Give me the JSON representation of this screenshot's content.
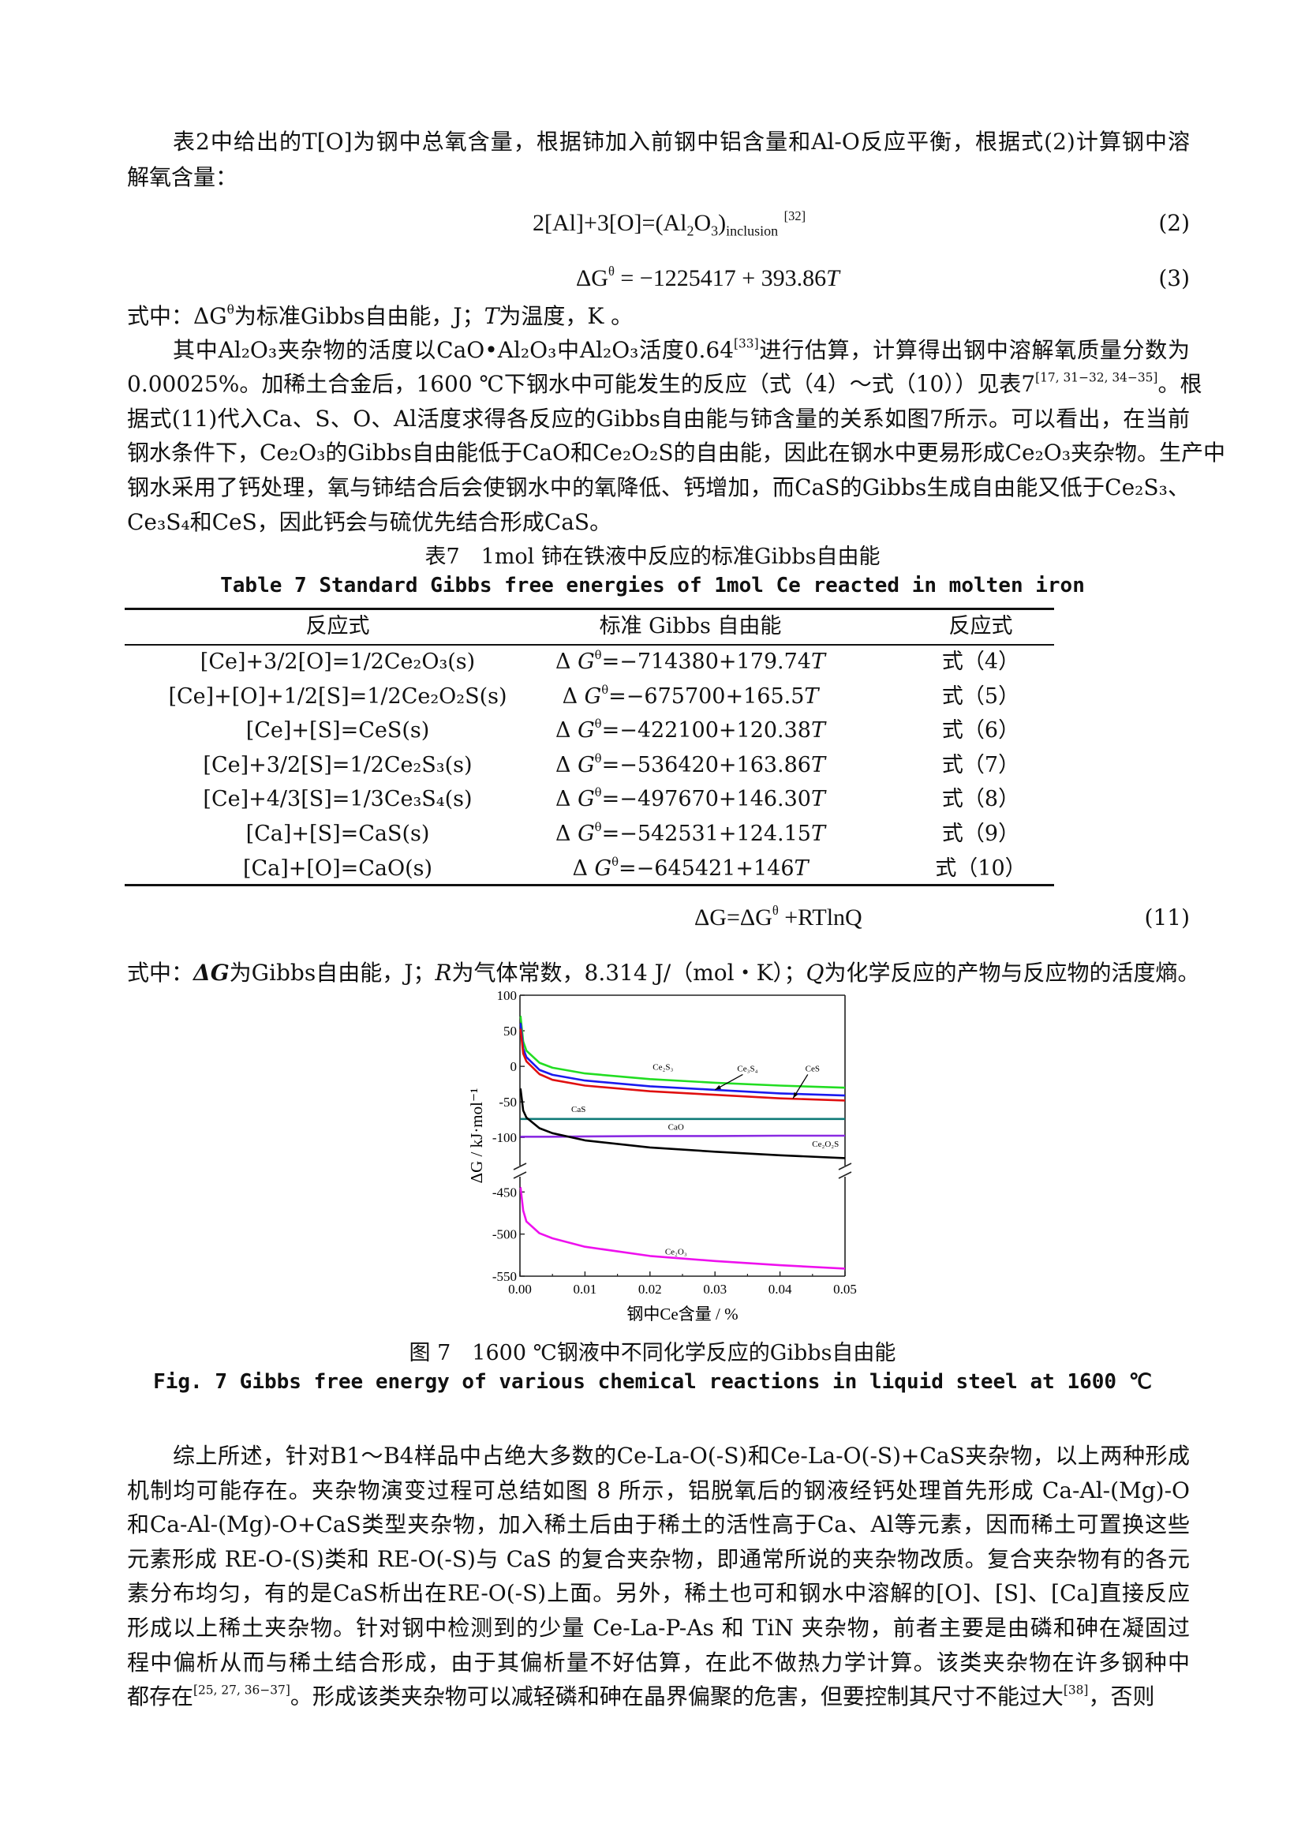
{
  "para1": [
    [
      [
        "表2中给出的T[O]为钢中总氧含量，根据铈加入前钢中铝含量和Al-O反应平衡，根据式(2)计算钢中溶",
        ""
      ]
    ],
    [
      [
        "解氧含量：",
        ""
      ]
    ]
  ],
  "eq2": {
    "parts": [
      [
        "2[Al]+3[O]=(Al",
        ""
      ],
      [
        "2",
        "sub"
      ],
      [
        "O",
        ""
      ],
      [
        "3",
        "sub"
      ],
      [
        ")",
        ""
      ],
      [
        "inclusion",
        "sub"
      ],
      [
        "  ",
        ""
      ],
      [
        "[32]",
        "sup"
      ]
    ],
    "number": "(2)"
  },
  "eq3": {
    "parts": [
      [
        "ΔG",
        ""
      ],
      [
        "θ",
        "sup"
      ],
      [
        " = −1225417 + 393.86",
        ""
      ],
      [
        "T",
        "i"
      ]
    ],
    "number": "(3)"
  },
  "note1": [
    [
      "式中：ΔG",
      ""
    ],
    [
      "θ",
      "sup"
    ],
    [
      "为标准Gibbs自由能，J；",
      ""
    ],
    [
      "T",
      "i"
    ],
    [
      "为温度，K 。",
      ""
    ]
  ],
  "para2": [
    [
      [
        "其中Al₂O₃夹杂物的活度以CaO•Al₂O₃中Al₂O₃活度0.64",
        ""
      ],
      [
        "[33]",
        "sup"
      ],
      [
        "进行估算，计算得出钢中溶解氧质量分数为",
        ""
      ]
    ],
    [
      [
        "0.00025%。加稀土合金后，1600 ℃下钢水中可能发生的反应（式（4）～式（10））见表7",
        ""
      ],
      [
        "[17, 31−32, 34−35]",
        "sup"
      ],
      [
        "。根",
        ""
      ]
    ],
    [
      [
        "据式(11)代入Ca、S、O、Al活度求得各反应的Gibbs自由能与铈含量的关系如图7所示。可以看出，在当前",
        ""
      ]
    ],
    [
      [
        "钢水条件下，Ce₂O₃的Gibbs自由能低于CaO和Ce₂O₂S的自由能，因此在钢水中更易形成Ce₂O₃夹杂物。生产中",
        ""
      ]
    ],
    [
      [
        "钢水采用了钙处理，氧与铈结合后会使钢水中的氧降低、钙增加，而CaS的Gibbs生成自由能又低于Ce₂S₃、",
        ""
      ]
    ],
    [
      [
        "Ce₃S₄和CeS，因此钙会与硫优先结合形成CaS。",
        ""
      ]
    ]
  ],
  "table": {
    "caption_cn": "表7　1mol 铈在铁液中反应的标准Gibbs自由能",
    "caption_en": "Table 7  Standard Gibbs free energies of 1mol Ce reacted in molten iron",
    "headers": [
      "反应式",
      "标准 Gibbs 自由能",
      "反应式"
    ],
    "rows": [
      {
        "reaction": "[Ce]+3/2[O]=1/2Ce₂O₃(s)",
        "energy": "=−714380+179.74",
        "eq": "式（4）"
      },
      {
        "reaction": "[Ce]+[O]+1/2[S]=1/2Ce₂O₂S(s)",
        "energy": "=−675700+165.5",
        "eq": "式（5）"
      },
      {
        "reaction": "[Ce]+[S]=CeS(s)",
        "energy": "=−422100+120.38",
        "eq": "式（6）"
      },
      {
        "reaction": "[Ce]+3/2[S]=1/2Ce₂S₃(s)",
        "energy": "=−536420+163.86",
        "eq": "式（7）"
      },
      {
        "reaction": "[Ce]+4/3[S]=1/3Ce₃S₄(s)",
        "energy": "=−497670+146.30",
        "eq": "式（8）"
      },
      {
        "reaction": "[Ca]+[S]=CaS(s)",
        "energy": "=−542531+124.15",
        "eq": "式（9）"
      },
      {
        "reaction": "[Ca]+[O]=CaO(s)",
        "energy": "=−645421+146",
        "eq": "式（10）"
      }
    ],
    "energy_prefix": "Δ",
    "energy_symbol": "G",
    "energy_sup": "θ",
    "energy_T": "T"
  },
  "eq11": {
    "parts": [
      [
        "ΔG=ΔG",
        ""
      ],
      [
        "θ",
        "sup"
      ],
      [
        " +RTlnQ",
        ""
      ]
    ],
    "number": "(11)"
  },
  "note2": [
    [
      "式中：",
      ""
    ],
    [
      "ΔG",
      "ib"
    ],
    [
      "为Gibbs自由能，J；",
      ""
    ],
    [
      "R",
      "i"
    ],
    [
      "为气体常数，8.314 J/（mol・K）；",
      ""
    ],
    [
      "Q",
      "i"
    ],
    [
      "为化学反应的产物与反应物的活度熵。",
      ""
    ]
  ],
  "chart_data": {
    "type": "line",
    "xlabel": "钢中Ce含量 / %",
    "ylabel": "ΔG / kJ·mol⁻¹",
    "xlim": [
      0,
      0.05
    ],
    "ylim_upper": [
      -143,
      100
    ],
    "ylim_lower": [
      -550,
      -430
    ],
    "axis_break": true,
    "grid": false,
    "x_ticks": [
      "0.00",
      "0.01",
      "0.02",
      "0.03",
      "0.04",
      "0.05"
    ],
    "y_ticks": [
      "100",
      "50",
      "0",
      "-50",
      "-100",
      "-450",
      "-500",
      "-550"
    ],
    "x": [
      0.0001,
      0.0005,
      0.001,
      0.003,
      0.005,
      0.01,
      0.02,
      0.03,
      0.04,
      0.05
    ],
    "series": [
      {
        "name": "Ce₂S₃",
        "color": "#22dd22",
        "values": [
          70,
          35,
          22,
          5,
          -2,
          -10,
          -18,
          -23,
          -27,
          -30
        ],
        "label_at": [
          0.022,
          -5
        ]
      },
      {
        "name": "Ce₃S₄",
        "color": "#1a1aee",
        "values": [
          60,
          25,
          13,
          -5,
          -12,
          -20,
          -28,
          -33,
          -38,
          -41
        ],
        "label_at": [
          0.035,
          -7
        ],
        "arrow_to": [
          0.03,
          -33
        ]
      },
      {
        "name": "CeS",
        "color": "#e01010",
        "values": [
          52,
          18,
          7,
          -11,
          -19,
          -27,
          -35,
          -40,
          -45,
          -48
        ],
        "label_at": [
          0.045,
          -7
        ],
        "arrow_to": [
          0.042,
          -45
        ]
      },
      {
        "name": "CaS",
        "color": "#0f7a78",
        "values": [
          -74,
          -74,
          -74,
          -74,
          -74,
          -74,
          -74,
          -74,
          -74,
          -74
        ],
        "label_at": [
          0.009,
          -64
        ]
      },
      {
        "name": "CaO",
        "color": "#8a2be2",
        "values": [
          -99,
          -99,
          -99,
          -99,
          -99,
          -98.5,
          -98,
          -98,
          -97.5,
          -97.5
        ],
        "label_at": [
          0.024,
          -89
        ]
      },
      {
        "name": "Ce₂O₂S",
        "color": "#000000",
        "values": [
          -32,
          -62,
          -72,
          -87,
          -94,
          -104,
          -114,
          -120,
          -125,
          -129
        ],
        "label_at": [
          0.047,
          -113
        ]
      },
      {
        "name": "Ce₂O₃",
        "color": "#ee11ee",
        "values": [
          -445,
          -472,
          -485,
          -499,
          -505,
          -515,
          -526,
          -532,
          -537,
          -541
        ],
        "label_at": [
          0.024,
          -524
        ]
      }
    ]
  },
  "figure": {
    "caption_cn": "图 7　1600 ℃钢液中不同化学反应的Gibbs自由能",
    "caption_en": "Fig. 7  Gibbs free energy of various chemical reactions in liquid steel at 1600 ℃"
  },
  "para3": [
    [
      [
        "综上所述，针对B1～B4样品中占绝大多数的Ce-La-O(-S)和Ce-La-O(-S)+CaS夹杂物，以上两种形成",
        ""
      ]
    ],
    [
      [
        "机制均可能存在。夹杂物演变过程可总结如图 8 所示，铝脱氧后的钢液经钙处理首先形成 Ca-Al-(Mg)-O",
        ""
      ]
    ],
    [
      [
        "和Ca-Al-(Mg)-O+CaS类型夹杂物，加入稀土后由于稀土的活性高于Ca、Al等元素，因而稀土可置换这些",
        ""
      ]
    ],
    [
      [
        "元素形成 RE-O-(S)类和 RE-O(-S)与 CaS 的复合夹杂物，即通常所说的夹杂物改质。复合夹杂物有的各元",
        ""
      ]
    ],
    [
      [
        "素分布均匀，有的是CaS析出在RE-O(-S)上面。另外，稀土也可和钢水中溶解的[O]、[S]、[Ca]直接反应",
        ""
      ]
    ],
    [
      [
        "形成以上稀土夹杂物。针对钢中检测到的少量 Ce-La-P-As 和 TiN 夹杂物，前者主要是由磷和砷在凝固过",
        ""
      ]
    ],
    [
      [
        "程中偏析从而与稀土结合形成，由于其偏析量不好估算，在此不做热力学计算。该类夹杂物在许多钢种中",
        ""
      ]
    ],
    [
      [
        "都存在",
        ""
      ],
      [
        "[25, 27, 36−37]",
        "sup"
      ],
      [
        "。形成该类夹杂物可以减轻磷和砷在晶界偏聚的危害，但要控制其尺寸不能过大",
        ""
      ],
      [
        "[38]",
        "sup"
      ],
      [
        "，否则",
        ""
      ]
    ]
  ]
}
